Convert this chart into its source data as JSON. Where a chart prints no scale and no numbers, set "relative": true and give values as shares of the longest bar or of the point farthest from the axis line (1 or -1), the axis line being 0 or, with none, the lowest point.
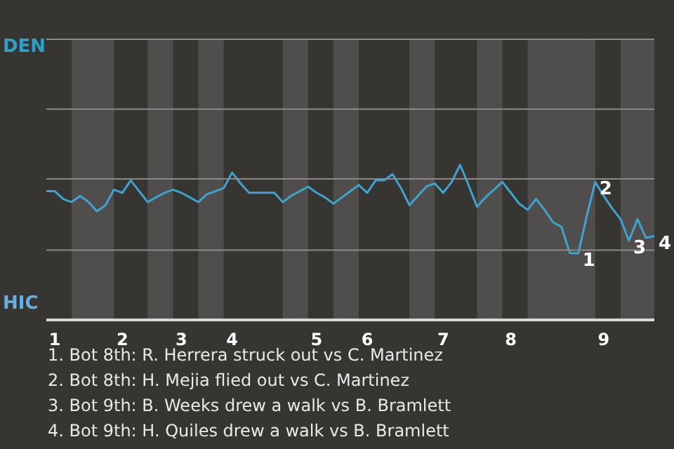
{
  "chart_data": {
    "type": "line",
    "relative": true,
    "categories": [
      null,
      "1",
      null,
      null,
      null,
      null,
      null,
      null,
      null,
      "2",
      null,
      null,
      null,
      null,
      null,
      null,
      "3",
      null,
      null,
      null,
      null,
      null,
      "4",
      null,
      null,
      null,
      null,
      null,
      null,
      null,
      null,
      null,
      "5",
      null,
      null,
      null,
      null,
      null,
      "6",
      null,
      null,
      null,
      null,
      null,
      null,
      null,
      null,
      "7",
      null,
      null,
      null,
      null,
      null,
      null,
      null,
      "8",
      null,
      null,
      null,
      null,
      null,
      null,
      null,
      null,
      null,
      null,
      "9",
      null,
      null,
      null,
      null,
      null,
      null
    ],
    "series": [
      {
        "color": "#3ea3cf",
        "values": [
          0.83,
          0.83,
          0.78,
          0.76,
          0.8,
          0.76,
          0.7,
          0.74,
          0.84,
          0.82,
          0.9,
          0.83,
          0.76,
          0.79,
          0.82,
          0.84,
          0.82,
          0.79,
          0.76,
          0.81,
          0.83,
          0.85,
          0.95,
          0.88,
          0.82,
          0.82,
          0.82,
          0.82,
          0.76,
          0.8,
          0.83,
          0.86,
          0.82,
          0.79,
          0.75,
          0.79,
          0.83,
          0.87,
          0.82,
          0.9,
          0.9,
          0.94,
          0.85,
          0.74,
          0.8,
          0.86,
          0.88,
          0.82,
          0.89,
          1,
          0.87,
          0.73,
          0.79,
          0.84,
          0.89,
          0.82,
          0.75,
          0.71,
          0.78,
          0.71,
          0.63,
          0.6,
          0.43,
          0.43,
          0.67,
          0.89,
          0.8,
          0.72,
          0.65,
          0.51,
          0.65,
          0.53,
          0.54
        ]
      }
    ],
    "ref_lines": [
      {
        "axis": "y",
        "value": 1.81,
        "color": "#8c8a88"
      },
      {
        "axis": "y",
        "value": 1.36,
        "color": "#8c8a88"
      },
      {
        "axis": "y",
        "value": 0.91,
        "color": "#8c8a88"
      },
      {
        "axis": "y",
        "value": 0.45,
        "color": "#8c8a88"
      }
    ],
    "annotations": [
      "DEN",
      "HIC",
      "1",
      "2",
      "3",
      "4",
      "1. Bot 8th: R. Herrera struck out vs C. Martinez",
      "2. Bot 8th: H. Mejia flied out vs C. Martinez",
      "3. Bot 9th: B. Weeks drew a walk vs B. Bramlett",
      "4. Bot 9th: H. Quiles drew a walk vs B. Bramlett"
    ]
  }
}
